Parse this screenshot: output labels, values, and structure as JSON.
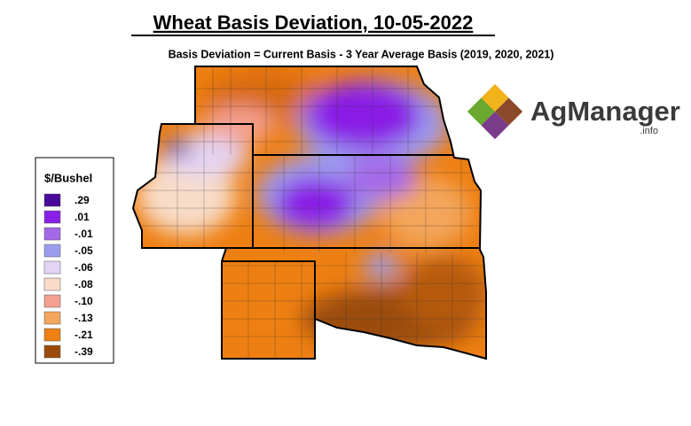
{
  "header": {
    "title": "Wheat Basis Deviation, 10-05-2022",
    "subtitle": "Basis Deviation = Current Basis - 3 Year Average Basis (2019, 2020, 2021)"
  },
  "legend": {
    "title": "$/Bushel",
    "entries": [
      {
        "label": ".29",
        "color": "#4a0a9c"
      },
      {
        "label": ".01",
        "color": "#8a1fe6"
      },
      {
        "label": "-.01",
        "color": "#a468e8"
      },
      {
        "label": "-.05",
        "color": "#9c9cef"
      },
      {
        "label": "-.06",
        "color": "#e4d4f4"
      },
      {
        "label": "-.08",
        "color": "#f8dcc8"
      },
      {
        "label": "-.10",
        "color": "#f4a091"
      },
      {
        "label": "-.13",
        "color": "#f3a65c"
      },
      {
        "label": "-.21",
        "color": "#ee7f12"
      },
      {
        "label": "-.39",
        "color": "#9a4b0c"
      }
    ]
  },
  "logo": {
    "name": "AgManager",
    "suffix": ".info"
  }
}
